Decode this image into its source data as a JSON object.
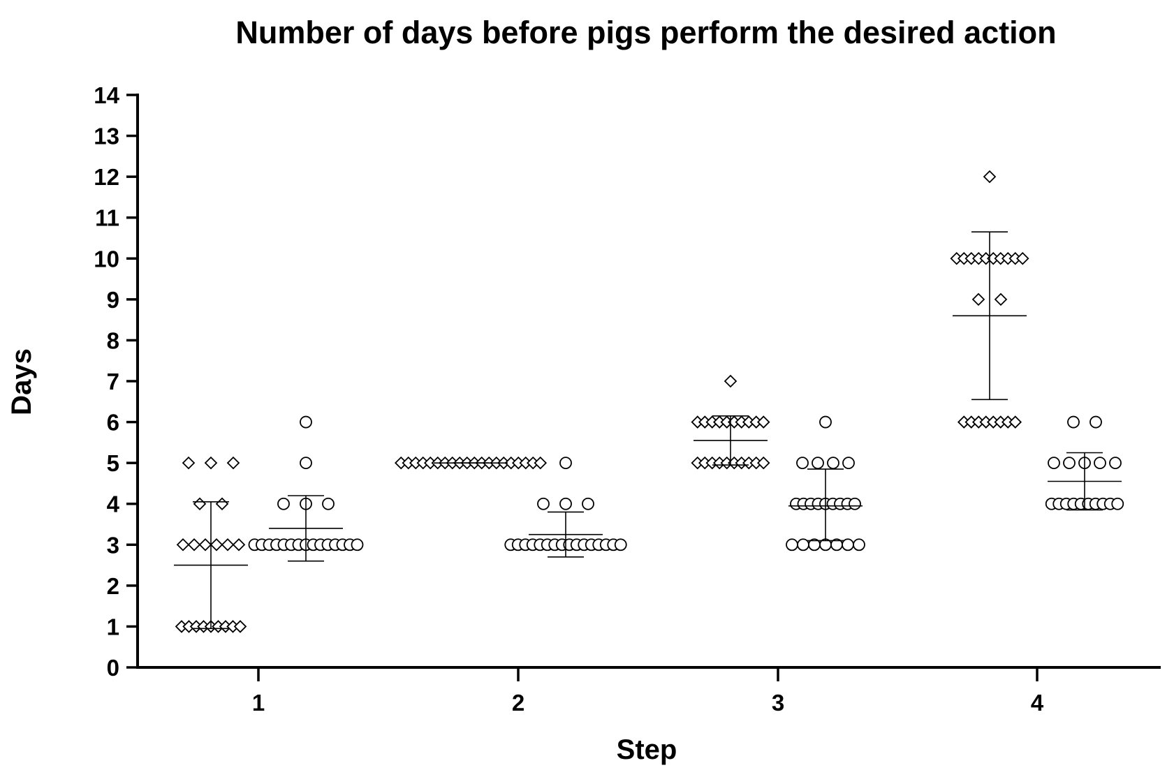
{
  "chart_data": {
    "type": "scatter",
    "title": "Number of days before pigs perform the desired action",
    "xlabel": "Step",
    "ylabel": "Days",
    "categories": [
      "1",
      "2",
      "3",
      "4"
    ],
    "ylim": [
      0,
      14
    ],
    "yticks": [
      "0",
      "1",
      "2",
      "3",
      "4",
      "5",
      "6",
      "7",
      "8",
      "9",
      "10",
      "11",
      "12",
      "13",
      "14"
    ],
    "grid": false,
    "series": [
      {
        "marker": "diamond",
        "groups": [
          {
            "values": [
              5,
              5,
              5,
              4,
              4,
              3,
              3,
              3,
              3,
              3,
              3,
              1,
              1,
              1,
              1,
              1,
              1,
              1,
              1,
              1
            ],
            "mean": 2.5,
            "sd_low": 0.95,
            "sd_high": 4.05
          },
          {
            "values": [
              5,
              5,
              5,
              5,
              5,
              5,
              5,
              5,
              5,
              5,
              5,
              5,
              5,
              5,
              5,
              5,
              5,
              5,
              5,
              5
            ],
            "mean": 5.0,
            "sd_low": 5.0,
            "sd_high": 5.0
          },
          {
            "values": [
              7,
              6,
              6,
              6,
              6,
              6,
              6,
              6,
              6,
              6,
              6,
              5,
              5,
              5,
              5,
              5,
              5,
              5,
              5,
              5,
              5
            ],
            "mean": 5.55,
            "sd_low": 4.95,
            "sd_high": 6.15
          },
          {
            "values": [
              12,
              10,
              10,
              10,
              10,
              10,
              10,
              10,
              10,
              10,
              10,
              9,
              9,
              6,
              6,
              6,
              6,
              6,
              6,
              6,
              6
            ],
            "mean": 8.6,
            "sd_low": 6.55,
            "sd_high": 10.65
          }
        ]
      },
      {
        "marker": "circle",
        "groups": [
          {
            "values": [
              6,
              5,
              4,
              4,
              4,
              3,
              3,
              3,
              3,
              3,
              3,
              3,
              3,
              3,
              3,
              3,
              3,
              3,
              3,
              3
            ],
            "mean": 3.4,
            "sd_low": 2.6,
            "sd_high": 4.2
          },
          {
            "values": [
              5,
              4,
              4,
              4,
              3,
              3,
              3,
              3,
              3,
              3,
              3,
              3,
              3,
              3,
              3,
              3,
              3,
              3,
              3,
              3
            ],
            "mean": 3.25,
            "sd_low": 2.7,
            "sd_high": 3.8
          },
          {
            "values": [
              6,
              5,
              5,
              5,
              5,
              4,
              4,
              4,
              4,
              4,
              4,
              4,
              4,
              4,
              3,
              3,
              3,
              3,
              3,
              3,
              3
            ],
            "mean": 3.95,
            "sd_low": 3.1,
            "sd_high": 4.85
          },
          {
            "values": [
              6,
              6,
              5,
              5,
              5,
              5,
              5,
              4,
              4,
              4,
              4,
              4,
              4,
              4,
              4,
              4,
              4
            ],
            "mean": 4.55,
            "sd_low": 3.85,
            "sd_high": 5.25
          }
        ]
      }
    ]
  }
}
